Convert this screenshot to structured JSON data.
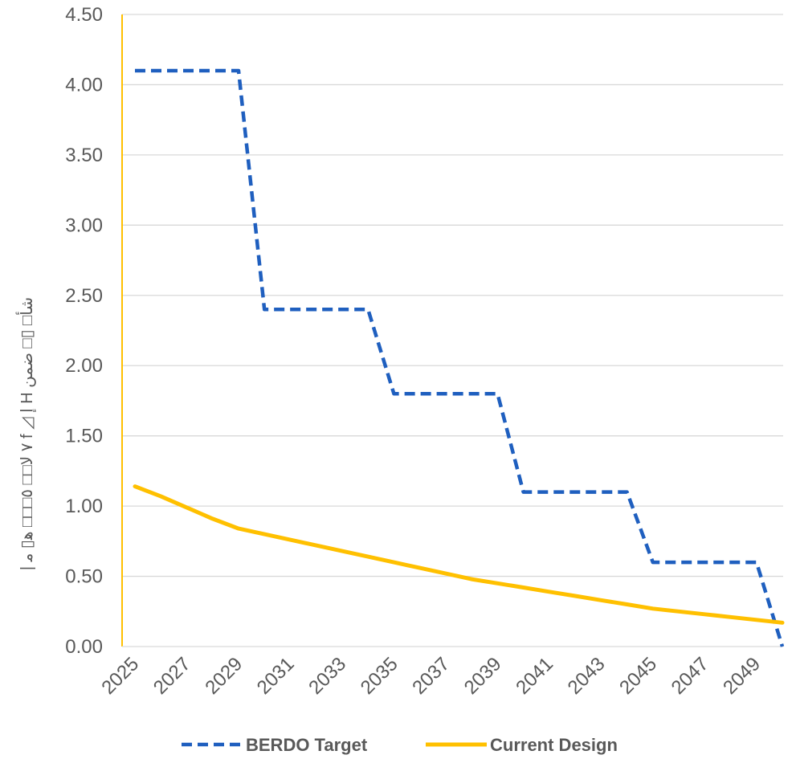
{
  "chart_data": {
    "type": "line",
    "title": "",
    "xlabel": "",
    "ylabel": "| ٧ لا□□ ٥□□□ ﻫ▯ ﻣ f ◿ إ H شأ□ ▯□ ضمن",
    "x": [
      2025,
      2026,
      2027,
      2028,
      2029,
      2030,
      2031,
      2032,
      2033,
      2034,
      2035,
      2036,
      2037,
      2038,
      2039,
      2040,
      2041,
      2042,
      2043,
      2044,
      2045,
      2046,
      2047,
      2048,
      2049,
      2050
    ],
    "x_tick_labels": [
      "2025",
      "2027",
      "2029",
      "2031",
      "2033",
      "2035",
      "2037",
      "2039",
      "2041",
      "2043",
      "2045",
      "2047",
      "2049"
    ],
    "y_tick_labels": [
      "0.00",
      "0.50",
      "1.00",
      "1.50",
      "2.00",
      "2.50",
      "3.00",
      "3.50",
      "4.00",
      "4.50"
    ],
    "ylim": [
      0,
      4.5
    ],
    "grid": "horizontal",
    "legend_position": "bottom",
    "series": [
      {
        "name": "BERDO Target",
        "color": "#1F5FBF",
        "style": "dashed",
        "values": [
          4.1,
          4.1,
          4.1,
          4.1,
          4.1,
          2.4,
          2.4,
          2.4,
          2.4,
          2.4,
          1.8,
          1.8,
          1.8,
          1.8,
          1.8,
          1.1,
          1.1,
          1.1,
          1.1,
          1.1,
          0.6,
          0.6,
          0.6,
          0.6,
          0.6,
          0.0
        ]
      },
      {
        "name": "Current Design",
        "color": "#FFC000",
        "style": "solid",
        "values": [
          1.14,
          1.07,
          0.99,
          0.91,
          0.84,
          0.8,
          0.76,
          0.72,
          0.68,
          0.64,
          0.6,
          0.56,
          0.52,
          0.48,
          0.45,
          0.42,
          0.39,
          0.36,
          0.33,
          0.3,
          0.27,
          0.25,
          0.23,
          0.21,
          0.19,
          0.17
        ]
      }
    ]
  }
}
